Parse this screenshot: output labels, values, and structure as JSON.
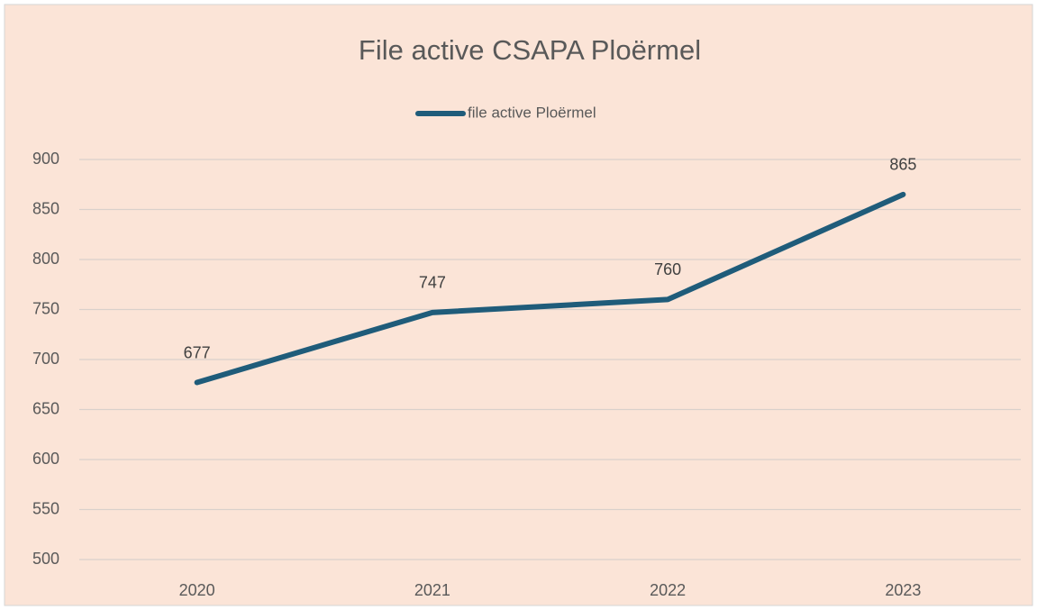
{
  "chart_data": {
    "type": "line",
    "title": "File active CSAPA Ploërmel",
    "categories": [
      "2020",
      "2021",
      "2022",
      "2023"
    ],
    "series": [
      {
        "name": "file active Ploërmel",
        "color": "#1f5c7a",
        "values": [
          677,
          747,
          760,
          865
        ]
      }
    ],
    "ylim": [
      500,
      900
    ],
    "yticks": [
      500,
      550,
      600,
      650,
      700,
      750,
      800,
      850,
      900
    ],
    "grid": true,
    "legend": "top",
    "data_labels": true
  }
}
